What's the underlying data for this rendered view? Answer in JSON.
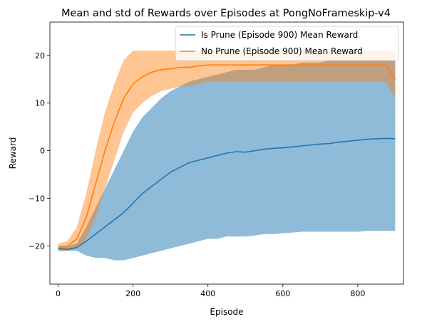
{
  "chart_data": {
    "type": "line",
    "title": "Mean and std of Rewards over Episodes at PongNoFrameskip-v4",
    "xlabel": "Episode",
    "ylabel": "Reward",
    "xlim": [
      -22,
      922
    ],
    "ylim": [
      -28,
      27
    ],
    "xticks": [
      0,
      200,
      400,
      600,
      800
    ],
    "yticks": [
      -20,
      -10,
      0,
      10,
      20
    ],
    "grid": false,
    "legend": "top-right",
    "series": [
      {
        "name": "Is Prune (Episode 900) Mean Reward",
        "color": "#1f77b4",
        "band_color": "#1f77b4",
        "x": [
          0,
          25,
          50,
          75,
          100,
          125,
          150,
          175,
          200,
          225,
          250,
          275,
          300,
          325,
          350,
          375,
          400,
          425,
          450,
          475,
          500,
          525,
          550,
          575,
          600,
          625,
          650,
          675,
          700,
          725,
          750,
          775,
          800,
          825,
          850,
          875,
          900
        ],
        "mean": [
          -20.5,
          -20.7,
          -20.3,
          -19.0,
          -17.5,
          -16.0,
          -14.5,
          -13.0,
          -11.0,
          -9.0,
          -7.5,
          -6.0,
          -4.5,
          -3.5,
          -2.5,
          -2.0,
          -1.5,
          -1.0,
          -0.5,
          -0.2,
          -0.3,
          0.0,
          0.3,
          0.5,
          0.6,
          0.8,
          1.0,
          1.2,
          1.4,
          1.5,
          1.8,
          2.0,
          2.2,
          2.4,
          2.5,
          2.6,
          2.5
        ],
        "lower": [
          -21.0,
          -21.0,
          -21.0,
          -22.0,
          -22.5,
          -22.5,
          -23.0,
          -23.0,
          -22.5,
          -22.0,
          -21.5,
          -21.0,
          -20.5,
          -20.0,
          -19.5,
          -19.0,
          -18.5,
          -18.5,
          -18.0,
          -18.0,
          -18.0,
          -17.8,
          -17.5,
          -17.5,
          -17.3,
          -17.2,
          -17.0,
          -17.0,
          -17.0,
          -17.0,
          -17.0,
          -17.0,
          -17.0,
          -16.8,
          -16.8,
          -16.8,
          -16.8
        ],
        "upper": [
          -20.0,
          -20.0,
          -19.5,
          -16.0,
          -12.0,
          -8.0,
          -4.0,
          0.0,
          4.0,
          7.0,
          9.0,
          11.0,
          12.5,
          13.5,
          14.5,
          15.0,
          15.5,
          16.0,
          16.5,
          17.0,
          17.0,
          17.0,
          17.5,
          18.0,
          18.0,
          18.0,
          18.5,
          18.5,
          18.5,
          19.0,
          19.0,
          19.0,
          19.0,
          19.0,
          19.0,
          19.0,
          19.0
        ]
      },
      {
        "name": "No Prune (Episode 900) Mean Reward",
        "color": "#ff7f0e",
        "band_color": "#ff7f0e",
        "x": [
          0,
          25,
          50,
          75,
          100,
          125,
          150,
          175,
          200,
          225,
          250,
          275,
          300,
          325,
          350,
          375,
          400,
          425,
          450,
          475,
          500,
          525,
          550,
          575,
          600,
          625,
          650,
          675,
          700,
          725,
          750,
          775,
          800,
          825,
          850,
          875,
          900
        ],
        "mean": [
          -20.3,
          -20.0,
          -18.5,
          -14.0,
          -7.0,
          0.0,
          6.0,
          11.0,
          14.0,
          15.5,
          16.5,
          17.0,
          17.2,
          17.5,
          17.5,
          17.8,
          18.0,
          18.0,
          18.0,
          18.0,
          18.0,
          18.0,
          18.0,
          18.0,
          18.0,
          18.0,
          18.0,
          18.0,
          18.0,
          18.0,
          18.0,
          18.0,
          18.0,
          18.0,
          18.0,
          18.0,
          15.0
        ],
        "lower": [
          -21.0,
          -21.0,
          -20.5,
          -18.5,
          -14.0,
          -8.0,
          -2.0,
          4.0,
          8.0,
          10.0,
          11.5,
          12.5,
          13.0,
          13.5,
          13.5,
          14.0,
          14.5,
          14.5,
          14.5,
          14.5,
          14.5,
          14.5,
          14.5,
          14.5,
          14.5,
          14.5,
          14.5,
          14.5,
          14.5,
          14.5,
          14.5,
          14.5,
          14.5,
          14.5,
          14.5,
          14.5,
          11.0
        ],
        "upper": [
          -19.5,
          -19.0,
          -16.0,
          -9.0,
          0.0,
          8.0,
          14.0,
          19.0,
          21.0,
          21.0,
          21.0,
          21.0,
          21.0,
          21.0,
          21.0,
          21.0,
          21.0,
          21.0,
          21.0,
          21.0,
          21.0,
          21.0,
          21.0,
          21.0,
          21.0,
          21.0,
          21.0,
          21.0,
          21.0,
          21.0,
          21.0,
          21.0,
          21.0,
          21.0,
          21.0,
          21.0,
          21.0
        ]
      }
    ]
  }
}
